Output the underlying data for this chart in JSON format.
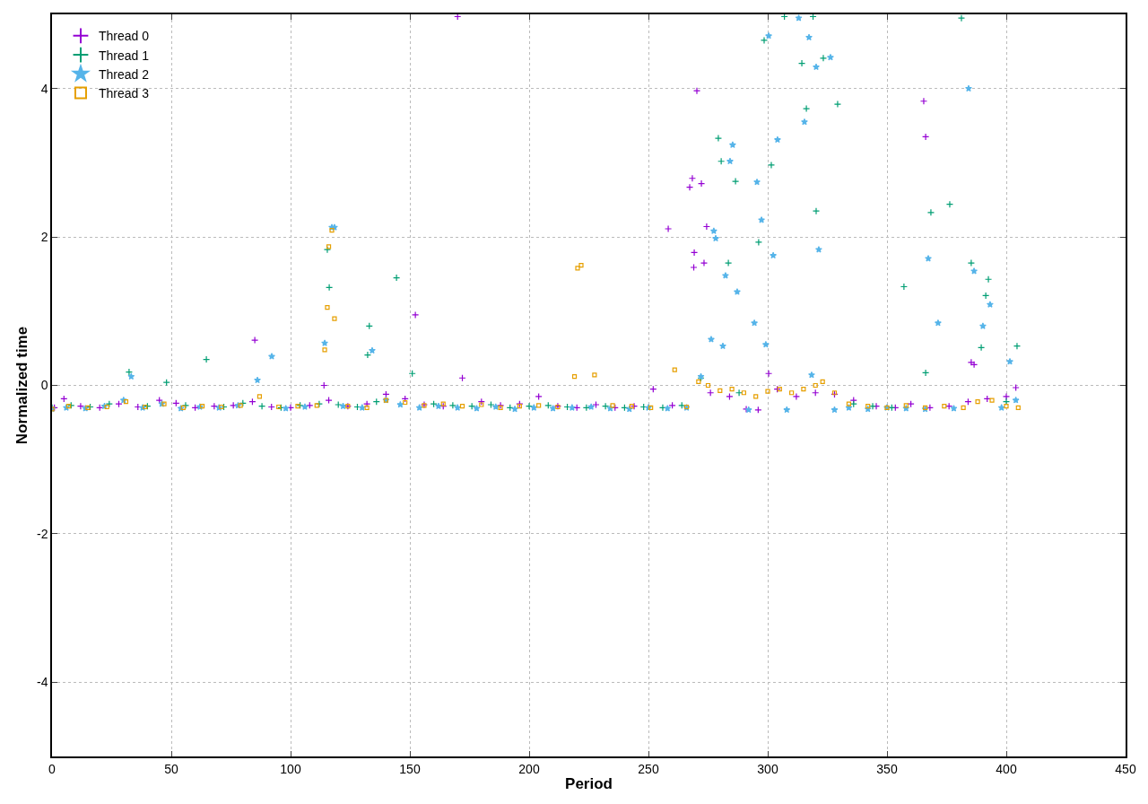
{
  "chart_data": {
    "type": "scatter",
    "xlabel": "Period",
    "ylabel": "Normalized time",
    "xlim": [
      0,
      450
    ],
    "xticks": [
      0,
      50,
      100,
      150,
      200,
      250,
      300,
      350,
      400,
      450
    ],
    "ylim": [
      -5,
      5
    ],
    "yticks": [
      -4,
      -2,
      0,
      2,
      4
    ],
    "grid": true,
    "legend": "top left",
    "series": [
      {
        "name": "Thread 0",
        "color": "#9400d3",
        "marker": "cross",
        "x": [
          1,
          5,
          12,
          20,
          28,
          36,
          45,
          52,
          60,
          68,
          76,
          84,
          85,
          92,
          100,
          108,
          114,
          116,
          124,
          132,
          140,
          148,
          152.3,
          156,
          164,
          170,
          172,
          180,
          188,
          196,
          204,
          212,
          220,
          228,
          236,
          244,
          252,
          258.3,
          260,
          267.3,
          268.4,
          269,
          269.2,
          270.3,
          272.2,
          273.3,
          274.4,
          276,
          284,
          291,
          296,
          300.4,
          304,
          312,
          320,
          328,
          336,
          345.5,
          353.5,
          360,
          365.4,
          366.2,
          368,
          376,
          384,
          385.3,
          386.5,
          392,
          400,
          404
        ],
        "values": [
          -0.3,
          -0.18,
          -0.28,
          -0.3,
          -0.25,
          -0.29,
          -0.2,
          -0.24,
          -0.3,
          -0.28,
          -0.27,
          -0.22,
          0.61,
          -0.29,
          -0.3,
          -0.27,
          0.0,
          -0.2,
          -0.28,
          -0.25,
          -0.12,
          -0.18,
          0.95,
          -0.26,
          -0.28,
          4.97,
          0.1,
          -0.22,
          -0.27,
          -0.25,
          -0.15,
          -0.28,
          -0.3,
          -0.26,
          -0.3,
          -0.28,
          -0.05,
          2.11,
          -0.27,
          2.67,
          2.79,
          1.59,
          1.79,
          3.97,
          2.72,
          1.65,
          2.14,
          -0.1,
          -0.15,
          -0.32,
          -0.33,
          0.16,
          -0.05,
          -0.15,
          -0.1,
          -0.12,
          -0.2,
          -0.28,
          -0.3,
          -0.25,
          3.83,
          3.35,
          -0.3,
          -0.28,
          -0.22,
          0.31,
          0.28,
          -0.18,
          -0.15,
          -0.03
        ]
      },
      {
        "name": "Thread 1",
        "color": "#009e73",
        "marker": "cross",
        "x": [
          0,
          8,
          16,
          24,
          32.3,
          40,
          48,
          56,
          64.7,
          72,
          80,
          88,
          96,
          104,
          112,
          115.4,
          116.2,
          120,
          128,
          132.3,
          133,
          136,
          144.4,
          151,
          160,
          168,
          176,
          184,
          192,
          200,
          208,
          216,
          224,
          232,
          240,
          248,
          256,
          264,
          272,
          279.3,
          280.5,
          283.5,
          286.5,
          288,
          296.2,
          298.5,
          301.5,
          307,
          314.3,
          316.2,
          319,
          320.3,
          323.3,
          329.3,
          336,
          344,
          352,
          357.1,
          366.2,
          368.4,
          376.3,
          381.2,
          385.3,
          389.5,
          391.4,
          392.5,
          400,
          404.5
        ],
        "values": [
          -0.3,
          -0.27,
          -0.29,
          -0.25,
          0.18,
          -0.28,
          0.04,
          -0.27,
          0.35,
          -0.29,
          -0.24,
          -0.28,
          -0.3,
          -0.27,
          -0.25,
          1.83,
          1.32,
          -0.26,
          -0.29,
          0.41,
          0.8,
          -0.22,
          1.45,
          0.16,
          -0.25,
          -0.27,
          -0.28,
          -0.26,
          -0.3,
          -0.28,
          -0.27,
          -0.29,
          -0.3,
          -0.28,
          -0.3,
          -0.29,
          -0.3,
          -0.27,
          0.1,
          3.33,
          3.02,
          1.65,
          2.75,
          -0.1,
          1.93,
          4.65,
          2.97,
          4.97,
          4.34,
          3.73,
          4.97,
          2.35,
          4.41,
          3.79,
          -0.25,
          -0.28,
          -0.3,
          1.33,
          0.17,
          2.33,
          2.44,
          4.95,
          1.65,
          0.51,
          1.21,
          1.43,
          -0.22,
          0.53
        ]
      },
      {
        "name": "Thread 2",
        "color": "#56b4e9",
        "marker": "star",
        "x": [
          0,
          6,
          14,
          22,
          30,
          33.2,
          38,
          46,
          54,
          62,
          70,
          78,
          86.1,
          92.1,
          98,
          106,
          114.3,
          117.3,
          118.4,
          122,
          130,
          134.2,
          140,
          146,
          154,
          162,
          170,
          178,
          186,
          194,
          202,
          210,
          218,
          226,
          234,
          242,
          250,
          258,
          266,
          272,
          276.3,
          277.4,
          278.2,
          281.2,
          282.3,
          284.2,
          285.3,
          287.2,
          292,
          294.4,
          295.5,
          297.4,
          299.2,
          300.4,
          302.3,
          304.1,
          308,
          313,
          315.4,
          317.3,
          318.4,
          320.3,
          321.4,
          326.3,
          328,
          334,
          342,
          350,
          358,
          366,
          367.3,
          371.4,
          378,
          384.2,
          386.5,
          390.2,
          393.2,
          398,
          401.5,
          404
        ],
        "values": [
          -0.32,
          -0.3,
          -0.31,
          -0.28,
          -0.2,
          0.12,
          -0.3,
          -0.25,
          -0.31,
          -0.29,
          -0.3,
          -0.27,
          0.07,
          0.39,
          -0.31,
          -0.29,
          0.57,
          2.13,
          2.13,
          -0.28,
          -0.3,
          0.47,
          -0.2,
          -0.26,
          -0.3,
          -0.28,
          -0.3,
          -0.31,
          -0.29,
          -0.32,
          -0.3,
          -0.31,
          -0.3,
          -0.29,
          -0.31,
          -0.32,
          -0.3,
          -0.31,
          -0.3,
          0.12,
          0.62,
          2.08,
          1.98,
          0.53,
          1.48,
          3.02,
          3.24,
          1.26,
          -0.33,
          0.84,
          2.74,
          2.23,
          0.55,
          4.71,
          1.75,
          3.31,
          -0.33,
          4.95,
          3.55,
          4.69,
          0.14,
          4.29,
          1.83,
          4.42,
          -0.33,
          -0.3,
          -0.32,
          -0.3,
          -0.31,
          -0.32,
          1.71,
          0.84,
          -0.31,
          4.0,
          1.54,
          0.8,
          1.09,
          -0.3,
          0.32,
          -0.2
        ]
      },
      {
        "name": "Thread 3",
        "color": "#e69f00",
        "marker": "square",
        "x": [
          0,
          7,
          15,
          23,
          31,
          39,
          47,
          55,
          63,
          71,
          79,
          87,
          95,
          103,
          111,
          114.3,
          115.4,
          116,
          117.3,
          118.4,
          124,
          132,
          140,
          148,
          156,
          164,
          172,
          180,
          188,
          196,
          204,
          212,
          219,
          220.3,
          221.8,
          227.4,
          235,
          243,
          251,
          261,
          266,
          271,
          275,
          280,
          285,
          290,
          295,
          300,
          305,
          310,
          315,
          320,
          323,
          328,
          334,
          342,
          350,
          358,
          366,
          374,
          382,
          388,
          394,
          400,
          405
        ],
        "values": [
          -0.32,
          -0.28,
          -0.3,
          -0.29,
          -0.22,
          -0.29,
          -0.25,
          -0.3,
          -0.28,
          -0.29,
          -0.27,
          -0.15,
          -0.29,
          -0.28,
          -0.27,
          0.48,
          1.05,
          1.87,
          2.09,
          0.9,
          -0.28,
          -0.3,
          -0.2,
          -0.23,
          -0.27,
          -0.25,
          -0.28,
          -0.26,
          -0.3,
          -0.28,
          -0.27,
          -0.29,
          0.12,
          1.58,
          1.62,
          0.14,
          -0.27,
          -0.28,
          -0.3,
          0.21,
          -0.29,
          0.05,
          0.0,
          -0.07,
          -0.05,
          -0.1,
          -0.15,
          -0.08,
          -0.05,
          -0.1,
          -0.05,
          0.0,
          0.05,
          -0.1,
          -0.25,
          -0.28,
          -0.3,
          -0.27,
          -0.3,
          -0.28,
          -0.3,
          -0.22,
          -0.2,
          -0.28,
          -0.3
        ]
      }
    ]
  }
}
